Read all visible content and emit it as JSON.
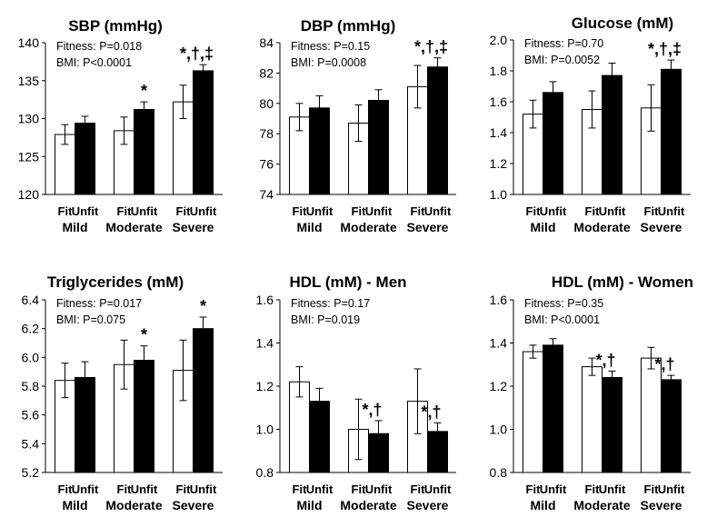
{
  "chart_data": [
    {
      "type": "bar",
      "title": "SBP (mmHg)",
      "ylim": [
        120,
        140
      ],
      "yticks": [
        "120",
        "125",
        "130",
        "135",
        "140"
      ],
      "stats": [
        "Fitness: P=0.018",
        "BMI: P<0.0001"
      ],
      "groups": [
        "Mild",
        "Moderate",
        "Severe"
      ],
      "bar_labels": [
        "Fit",
        "Unfit"
      ],
      "series": [
        {
          "name": "Fit",
          "fill": "#ffffff",
          "values": [
            127.9,
            128.4,
            132.2
          ],
          "error": [
            1.3,
            1.8,
            2.2
          ]
        },
        {
          "name": "Unfit",
          "fill": "#000000",
          "values": [
            129.4,
            131.2,
            136.3
          ],
          "error": [
            0.9,
            1.0,
            0.8
          ]
        }
      ],
      "annotations": [
        "",
        "*",
        "*,†,‡"
      ]
    },
    {
      "type": "bar",
      "title": "DBP (mmHg)",
      "ylim": [
        74,
        84
      ],
      "yticks": [
        "74",
        "76",
        "78",
        "80",
        "82",
        "84"
      ],
      "stats": [
        "Fitness: P=0.15",
        "BMI: P=0.0008"
      ],
      "groups": [
        "Mild",
        "Moderate",
        "Severe"
      ],
      "bar_labels": [
        "Fit",
        "Unfit"
      ],
      "series": [
        {
          "name": "Fit",
          "fill": "#ffffff",
          "values": [
            79.1,
            78.7,
            81.1
          ],
          "error": [
            0.9,
            1.2,
            1.4
          ]
        },
        {
          "name": "Unfit",
          "fill": "#000000",
          "values": [
            79.7,
            80.2,
            82.4
          ],
          "error": [
            0.8,
            0.7,
            0.6
          ]
        }
      ],
      "annotations": [
        "",
        "",
        "*,†,‡"
      ]
    },
    {
      "type": "bar",
      "title": "Glucose (mM)",
      "ylim": [
        1.0,
        2.0
      ],
      "yticks": [
        "1.0",
        "1.2",
        "1.4",
        "1.6",
        "1.8",
        "2.0"
      ],
      "stats": [
        "Fitness: P=0.70",
        "BMI: P=0.0052"
      ],
      "groups": [
        "Mild",
        "Moderate",
        "Severe"
      ],
      "bar_labels": [
        "Fit",
        "Unfit"
      ],
      "series": [
        {
          "name": "Fit",
          "fill": "#ffffff",
          "values": [
            1.52,
            1.55,
            1.56
          ],
          "error": [
            0.09,
            0.12,
            0.15
          ]
        },
        {
          "name": "Unfit",
          "fill": "#000000",
          "values": [
            1.66,
            1.77,
            1.81
          ],
          "error": [
            0.07,
            0.08,
            0.06
          ]
        }
      ],
      "annotations": [
        "",
        "",
        "*,†,‡"
      ]
    },
    {
      "type": "bar",
      "title": "Triglycerides (mM)",
      "ylim": [
        5.2,
        6.4
      ],
      "yticks": [
        "5.2",
        "5.4",
        "5.6",
        "5.8",
        "6.0",
        "6.2",
        "6.4"
      ],
      "stats": [
        "Fitness: P=0.017",
        "BMI: P=0.075"
      ],
      "groups": [
        "Mild",
        "Moderate",
        "Severe"
      ],
      "bar_labels": [
        "Fit",
        "Unfit"
      ],
      "series": [
        {
          "name": "Fit",
          "fill": "#ffffff",
          "values": [
            5.84,
            5.95,
            5.91
          ],
          "error": [
            0.12,
            0.17,
            0.21
          ]
        },
        {
          "name": "Unfit",
          "fill": "#000000",
          "values": [
            5.86,
            5.98,
            6.2
          ],
          "error": [
            0.11,
            0.1,
            0.08
          ]
        }
      ],
      "annotations": [
        "",
        "*",
        "*"
      ]
    },
    {
      "type": "bar",
      "title": "HDL (mM) - Men",
      "ylim": [
        0.8,
        1.6
      ],
      "yticks": [
        "0.8",
        "1.0",
        "1.2",
        "1.4",
        "1.6"
      ],
      "stats": [
        "Fitness: P=0.17",
        "BMI: P=0.019"
      ],
      "groups": [
        "Mild",
        "Moderate",
        "Severe"
      ],
      "bar_labels": [
        "Fit",
        "Unfit"
      ],
      "series": [
        {
          "name": "Fit",
          "fill": "#ffffff",
          "values": [
            1.22,
            1.0,
            1.13
          ],
          "error": [
            0.07,
            0.14,
            0.15
          ]
        },
        {
          "name": "Unfit",
          "fill": "#000000",
          "values": [
            1.13,
            0.98,
            0.99
          ],
          "error": [
            0.06,
            0.06,
            0.04
          ]
        }
      ],
      "annotations": [
        "",
        "*,†",
        "*,†"
      ]
    },
    {
      "type": "bar",
      "title": "HDL (mM) - Women",
      "ylim": [
        0.8,
        1.6
      ],
      "yticks": [
        "0.8",
        "1.0",
        "1.2",
        "1.4",
        "1.6"
      ],
      "stats": [
        "Fitness: P=0.35",
        "BMI: P<0.0001"
      ],
      "groups": [
        "Mild",
        "Moderate",
        "Severe"
      ],
      "bar_labels": [
        "Fit",
        "Unfit"
      ],
      "series": [
        {
          "name": "Fit",
          "fill": "#ffffff",
          "values": [
            1.36,
            1.29,
            1.33
          ],
          "error": [
            0.03,
            0.04,
            0.05
          ]
        },
        {
          "name": "Unfit",
          "fill": "#000000",
          "values": [
            1.39,
            1.24,
            1.23
          ],
          "error": [
            0.03,
            0.03,
            0.02
          ]
        }
      ],
      "annotations": [
        "",
        "*,†",
        "*,†"
      ]
    }
  ]
}
